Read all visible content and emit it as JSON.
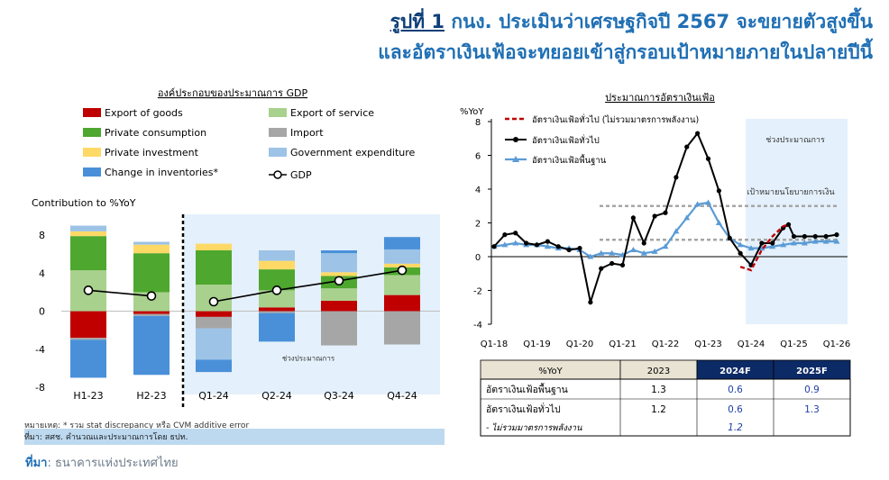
{
  "header": {
    "title_prefix": "รูปที่ 1",
    "title_line1_rest": " กนง. ประเมินว่าเศรษฐกิจปี 2567 จะขยายตัวสูงขึ้น",
    "title_line2": "และอัตราเงินเฟ้อจะทยอยเข้าสู่กรอบเป้าหมายภายในปลายปีนี้"
  },
  "footer": {
    "source_label": "ที่มา",
    "source_text": ": ธนาคารแห่งประเทศไทย"
  },
  "left_panel": {
    "note_line1": "หมายเหตุ: * รวม stat discrepancy หรือ CVM additive error",
    "note_line2": "ที่มา: สศช. คำนวณและประมาณการโดย ธปท."
  },
  "colors": {
    "export_goods": "#c00000",
    "export_service": "#a9d18e",
    "private_consumption": "#4ea72e",
    "import": "#a6a6a6",
    "private_investment": "#ffd966",
    "government_expenditure": "#9dc3e6",
    "change_in_inventories": "#4a90d9",
    "forecast_bg": "#e4f0fb",
    "headline_incl_energy": "#c00000",
    "headline": "#000000",
    "core": "#5b9bd5",
    "table_header_dark": "#0c2a66",
    "table_header_light": "#e8e3d3"
  },
  "chart_data": [
    {
      "type": "bar",
      "title": "องค์ประกอบของประมาณการ GDP",
      "ylabel": "Contribution to %YoY",
      "categories": [
        "H1-23",
        "H2-23",
        "Q1-24",
        "Q2-24",
        "Q3-24",
        "Q4-24"
      ],
      "ylim": [
        -8,
        10
      ],
      "yticks": [
        -8,
        -4,
        0,
        4,
        8
      ],
      "forecast_label": "ช่วงประมาณการ",
      "legend_placement": "top",
      "series": [
        {
          "key": "export_goods",
          "name": "Export of goods",
          "values": [
            -2.8,
            -0.3,
            -0.6,
            0.4,
            1.1,
            1.7
          ]
        },
        {
          "key": "export_service",
          "name": "Export of service",
          "values": [
            4.3,
            2.0,
            2.8,
            1.8,
            1.3,
            2.1
          ]
        },
        {
          "key": "private_consumption",
          "name": "Private consumption",
          "values": [
            3.6,
            4.1,
            3.6,
            2.2,
            1.3,
            0.8
          ]
        },
        {
          "key": "import",
          "name": "Import",
          "values": [
            -0.2,
            -0.2,
            -1.2,
            -0.2,
            -3.6,
            -3.5
          ]
        },
        {
          "key": "private_investment",
          "name": "Private investment",
          "values": [
            0.5,
            0.9,
            0.7,
            0.9,
            0.4,
            0.4
          ]
        },
        {
          "key": "government_expenditure",
          "name": "Government expenditure",
          "values": [
            0.6,
            0.3,
            -3.3,
            1.1,
            2.0,
            1.5
          ]
        },
        {
          "key": "change_in_inventories",
          "name": "Change in inventories*",
          "values": [
            -4.0,
            -6.2,
            -1.3,
            -3.0,
            0.3,
            1.3
          ]
        }
      ],
      "gdp": {
        "name": "GDP",
        "values": [
          2.2,
          1.6,
          1.0,
          2.2,
          3.2,
          4.3
        ]
      }
    },
    {
      "type": "line",
      "title": "ประมาณการอัตราเงินเฟ้อ",
      "ylabel": "%YoY",
      "ylim": [
        -4,
        8
      ],
      "yticks": [
        -4,
        -2,
        0,
        2,
        4,
        6,
        8
      ],
      "xticks": [
        "Q1-18",
        "Q1-19",
        "Q1-20",
        "Q1-21",
        "Q1-22",
        "Q1-23",
        "Q1-24",
        "Q1-25",
        "Q1-26"
      ],
      "forecast_label": "ช่วงประมาณการ",
      "target_label": "เป้าหมายนโยบายการเงิน",
      "target_band": [
        1,
        3
      ],
      "legend_placement": "top-left",
      "series": [
        {
          "key": "headline_incl_energy",
          "name": "อัตราเงินเฟ้อทั่วไป (ไม่รวมมาตรการพลังงาน)",
          "style": "dashed",
          "x": [
            2023.75,
            2024.0,
            2024.25,
            2024.5,
            2024.75,
            2024.875
          ],
          "y": [
            -0.6,
            -0.8,
            0.4,
            1.2,
            1.8,
            1.9
          ]
        },
        {
          "key": "headline",
          "name": "อัตราเงินเฟ้อทั่วไป",
          "style": "solid-marker",
          "x": [
            2018.0,
            2018.25,
            2018.5,
            2018.75,
            2019.0,
            2019.25,
            2019.5,
            2019.75,
            2020.0,
            2020.25,
            2020.5,
            2020.75,
            2021.0,
            2021.25,
            2021.5,
            2021.75,
            2022.0,
            2022.25,
            2022.5,
            2022.75,
            2023.0,
            2023.25,
            2023.5,
            2023.75,
            2024.0,
            2024.25,
            2024.5,
            2024.75,
            2024.875,
            2025.0,
            2025.25,
            2025.5,
            2025.75,
            2026.0
          ],
          "y": [
            0.6,
            1.3,
            1.4,
            0.8,
            0.7,
            0.9,
            0.6,
            0.4,
            0.5,
            -2.7,
            -0.7,
            -0.4,
            -0.5,
            2.3,
            0.8,
            2.4,
            2.6,
            4.7,
            6.5,
            7.3,
            5.8,
            3.9,
            1.1,
            0.2,
            -0.5,
            0.8,
            0.8,
            1.7,
            1.9,
            1.2,
            1.2,
            1.2,
            1.2,
            1.3
          ]
        },
        {
          "key": "core",
          "name": "อัตราเงินเฟ้อพื้นฐาน",
          "style": "solid-triangle",
          "x": [
            2018.0,
            2018.25,
            2018.5,
            2018.75,
            2019.0,
            2019.25,
            2019.5,
            2019.75,
            2020.0,
            2020.25,
            2020.5,
            2020.75,
            2021.0,
            2021.25,
            2021.5,
            2021.75,
            2022.0,
            2022.25,
            2022.5,
            2022.75,
            2023.0,
            2023.25,
            2023.5,
            2023.75,
            2024.0,
            2024.25,
            2024.5,
            2024.75,
            2025.0,
            2025.25,
            2025.5,
            2025.75,
            2026.0
          ],
          "y": [
            0.6,
            0.7,
            0.8,
            0.7,
            0.7,
            0.6,
            0.5,
            0.5,
            0.4,
            0.0,
            0.2,
            0.2,
            0.1,
            0.4,
            0.2,
            0.3,
            0.6,
            1.5,
            2.3,
            3.1,
            3.2,
            2.0,
            1.1,
            0.7,
            0.5,
            0.5,
            0.6,
            0.7,
            0.8,
            0.8,
            0.9,
            0.9,
            0.9
          ]
        }
      ],
      "forecast_start": 2023.75
    },
    {
      "type": "table",
      "columns": [
        "%YoY",
        "2023",
        "2024F",
        "2025F"
      ],
      "rows": [
        {
          "label": "อัตราเงินเฟ้อพื้นฐาน",
          "values": [
            "1.3",
            "0.6",
            "0.9"
          ]
        },
        {
          "label": "อัตราเงินเฟ้อทั่วไป",
          "values": [
            "1.2",
            "0.6",
            "1.3"
          ]
        },
        {
          "label": "- ไม่รวมมาตรการพลังงาน",
          "values": [
            "",
            "1.2",
            ""
          ]
        }
      ]
    }
  ]
}
